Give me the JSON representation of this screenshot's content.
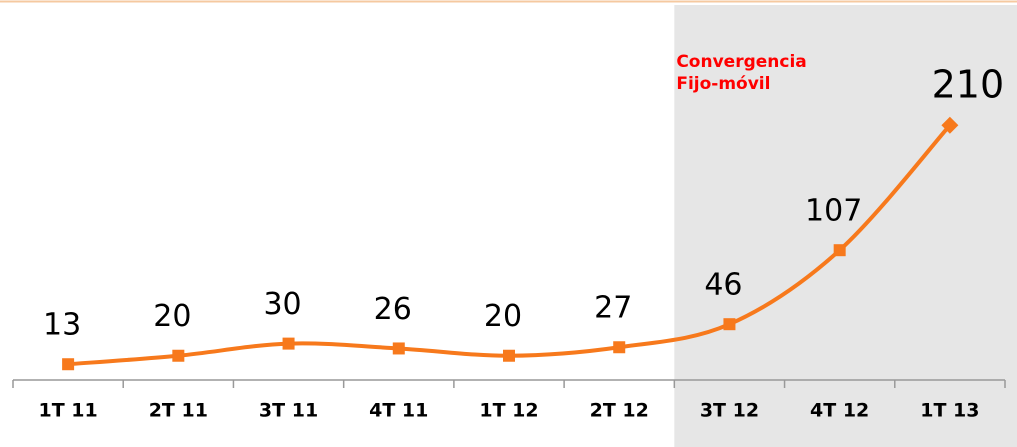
{
  "chart_data": {
    "type": "line",
    "categories": [
      "1T 11",
      "2T 11",
      "3T 11",
      "4T 11",
      "1T 12",
      "2T 12",
      "3T 12",
      "4T 12",
      "1T 13"
    ],
    "values": [
      13,
      20,
      30,
      26,
      20,
      27,
      46,
      107,
      210
    ],
    "color": "#f7791c",
    "ylim": [
      0,
      305
    ],
    "shaded_from_index": 6,
    "annotation": [
      "Convergencia",
      "Fijo-móvil"
    ],
    "annotation_color": "#ff0000"
  }
}
